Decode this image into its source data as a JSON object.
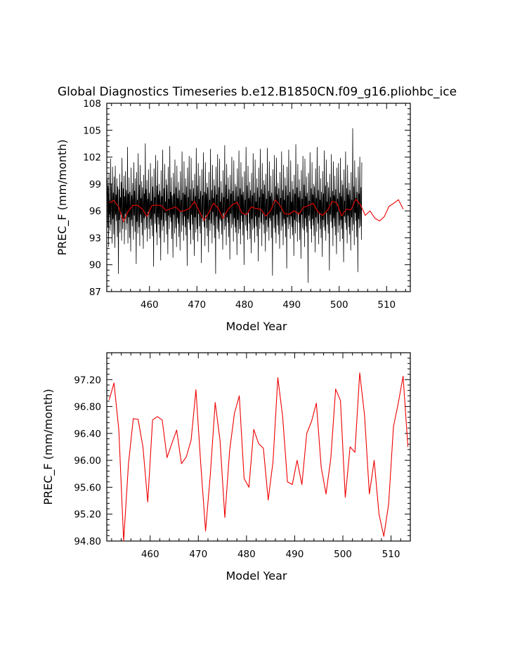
{
  "figure": {
    "title": "Global Diagnostics Timeseries b.e12.B1850CN.f09_g16.pliohbc_ice"
  },
  "colors": {
    "monthly": "#000000",
    "annual": "#ee0000",
    "axes": "#000000"
  },
  "chart_data": [
    {
      "type": "line",
      "ylabel": "PREC_F (mm/month)",
      "xlabel": "Model Year",
      "xlim": [
        451,
        515
      ],
      "ylim": [
        87,
        108
      ],
      "x_tick_labels": [
        "460",
        "470",
        "480",
        "490",
        "500",
        "510"
      ],
      "y_tick_labels": [
        "87",
        "90",
        "93",
        "96",
        "99",
        "102",
        "105",
        "108"
      ],
      "grid": false,
      "series": [
        {
          "color": "#000000",
          "x_start": 451.04,
          "x_step": 0.0833,
          "values": [
            97.8,
            99.5,
            94.2,
            98.8,
            92.0,
            100.2,
            95.6,
            97.1,
            93.8,
            101.8,
            94.5,
            99.0,
            96.6,
            92.4,
            100.9,
            95.1,
            98.0,
            93.4,
            99.8,
            96.2,
            91.9,
            101.0,
            95.6,
            97.8,
            94.9,
            99.6,
            93.1,
            98.7,
            96.0,
            89.0,
            98.4,
            95.0,
            100.1,
            93.6,
            97.5,
            95.8,
            99.2,
            92.7,
            101.9,
            96.3,
            94.0,
            98.5,
            95.1,
            99.9,
            92.3,
            97.6,
            95.7,
            100.4,
            93.9,
            98.3,
            96.2,
            94.6,
            103.1,
            92.4,
            97.9,
            95.3,
            99.7,
            93.0,
            98.1,
            96.4,
            91.5,
            100.8,
            95.0,
            97.7,
            94.3,
            99.1,
            96.8,
            92.8,
            101.4,
            95.5,
            98.2,
            93.7,
            99.6,
            96.0,
            90.1,
            100.3,
            94.8,
            97.2,
            93.5,
            102.4,
            96.1,
            94.2,
            98.9,
            92.1,
            101.1,
            95.6,
            97.4,
            94.7,
            99.3,
            93.3,
            98.6,
            96.7,
            91.8,
            100.0,
            95.2,
            97.9,
            93.9,
            103.5,
            95.4,
            98.4,
            94.1,
            99.4,
            92.6,
            97.3,
            95.9,
            100.6,
            94.0,
            98.0,
            96.5,
            92.9,
            101.3,
            95.1,
            97.1,
            94.4,
            99.8,
            93.2,
            98.7,
            96.3,
            89.8,
            100.7,
            95.7,
            97.5,
            94.6,
            102.2,
            96.0,
            93.6,
            98.8,
            92.2,
            101.6,
            95.3,
            97.8,
            94.5,
            99.0,
            93.0,
            98.2,
            96.6,
            90.5,
            100.5,
            95.0,
            97.6,
            93.8,
            102.8,
            96.2,
            94.3,
            98.5,
            92.5,
            101.2,
            95.8,
            97.0,
            94.9,
            99.5,
            93.4,
            98.9,
            96.1,
            91.2,
            100.9,
            95.5,
            97.3,
            94.0,
            103.2,
            95.3,
            98.1,
            94.8,
            99.7,
            92.9,
            97.7,
            96.4,
            90.8,
            100.2,
            95.6,
            97.9,
            93.5,
            101.7,
            96.0,
            94.1,
            98.6,
            92.0,
            101.0,
            95.2,
            97.4,
            94.6,
            99.2,
            93.1,
            98.3,
            96.5,
            91.6,
            100.4,
            95.9,
            97.2,
            93.7,
            102.6,
            96.3,
            94.4,
            98.0,
            92.7,
            101.5,
            95.4,
            97.8,
            94.2,
            99.6,
            93.3,
            98.7,
            96.2,
            89.9,
            100.8,
            95.1,
            97.5,
            94.7,
            102.1,
            95.8,
            93.9,
            98.4,
            92.3,
            101.9,
            95.6,
            97.1,
            94.5,
            99.4,
            92.8,
            98.5,
            96.7,
            91.0,
            100.1,
            95.3,
            97.6,
            93.6,
            103.0,
            96.1,
            94.0,
            98.8,
            92.6,
            101.3,
            95.7,
            97.3,
            94.3,
            99.9,
            93.5,
            98.2,
            96.0,
            90.2,
            100.6,
            95.2,
            97.7,
            94.8,
            102.5,
            96.4,
            94.2,
            98.1,
            92.1,
            101.4,
            95.5,
            97.9,
            94.1,
            99.1,
            93.2,
            98.6,
            96.3,
            91.4,
            100.3,
            95.0,
            97.2,
            93.8,
            102.9,
            96.2,
            94.6,
            98.3,
            92.4,
            101.1,
            95.9,
            97.4,
            94.4,
            99.5,
            93.0,
            98.8,
            96.6,
            89.0,
            100.9,
            95.4,
            97.8,
            94.0,
            102.3,
            95.6,
            93.7,
            98.6,
            92.9,
            101.8,
            95.1,
            97.0,
            94.9,
            99.3,
            93.4,
            98.0,
            96.1,
            91.7,
            100.5,
            95.8,
            97.5,
            93.9,
            103.3,
            96.0,
            94.3,
            98.9,
            92.2,
            101.2,
            95.3,
            97.3,
            94.7,
            99.7,
            93.1,
            98.4,
            96.5,
            90.6,
            100.0,
            95.7,
            97.9,
            94.1,
            102.0,
            96.3,
            94.5,
            98.2,
            92.6,
            101.6,
            95.2,
            97.1,
            94.2,
            99.0,
            93.6,
            98.7,
            96.2,
            91.1,
            100.7,
            95.0,
            97.6,
            93.5,
            102.7,
            95.9,
            94.0,
            98.5,
            92.3,
            101.4,
            95.5,
            97.8,
            94.8,
            99.8,
            93.3,
            98.1,
            96.4,
            90.0,
            100.4,
            95.6,
            97.2,
            94.4,
            103.1,
            96.1,
            93.8,
            98.8,
            92.8,
            101.0,
            95.8,
            97.4,
            94.6,
            99.2,
            92.9,
            98.3,
            96.7,
            91.3,
            100.2,
            95.1,
            97.7,
            93.9,
            102.4,
            96.2,
            94.1,
            98.0,
            92.5,
            101.7,
            95.4,
            97.0,
            94.3,
            99.6,
            93.2,
            98.6,
            96.0,
            90.4,
            100.8,
            95.3,
            97.5,
            94.0,
            102.9,
            96.5,
            94.7,
            98.4,
            92.1,
            101.3,
            95.7,
            97.9,
            94.5,
            99.4,
            93.5,
            98.9,
            96.3,
            91.5,
            100.1,
            95.0,
            97.3,
            93.7,
            103.0,
            95.8,
            94.2,
            98.2,
            92.7,
            101.5,
            95.2,
            97.6,
            94.9,
            99.9,
            93.0,
            98.0,
            96.6,
            88.8,
            100.6,
            95.5,
            97.1,
            94.1,
            102.2,
            96.0,
            93.6,
            98.7,
            92.4,
            101.9,
            95.6,
            97.8,
            94.4,
            99.1,
            93.4,
            98.5,
            96.2,
            91.8,
            100.3,
            95.9,
            97.4,
            93.8,
            102.6,
            96.4,
            94.3,
            98.3,
            92.2,
            101.1,
            95.1,
            97.2,
            94.6,
            99.7,
            93.1,
            98.8,
            96.1,
            89.6,
            100.9,
            95.3,
            97.7,
            94.0,
            102.8,
            95.7,
            94.5,
            98.1,
            92.9,
            101.6,
            95.4,
            97.0,
            94.2,
            99.3,
            93.3,
            98.4,
            96.5,
            91.0,
            100.0,
            95.0,
            97.9,
            93.5,
            103.4,
            96.3,
            94.8,
            98.6,
            92.6,
            101.2,
            95.8,
            97.5,
            94.7,
            99.5,
            92.8,
            98.2,
            96.0,
            90.7,
            100.5,
            95.6,
            97.3,
            94.1,
            102.1,
            96.2,
            93.9,
            98.9,
            92.0,
            101.8,
            95.2,
            97.6,
            94.3,
            99.8,
            93.6,
            98.0,
            96.4,
            88.0,
            100.2,
            95.5,
            97.1,
            94.9,
            102.5,
            95.9,
            94.0,
            98.5,
            92.5,
            101.4,
            95.1,
            97.8,
            94.4,
            99.0,
            93.2,
            98.7,
            96.6,
            91.4,
            100.7,
            95.3,
            97.4,
            93.7,
            103.1,
            96.1,
            94.6,
            98.3,
            92.3,
            101.0,
            95.7,
            97.2,
            94.0,
            99.6,
            93.0,
            98.1,
            96.3,
            90.9,
            100.4,
            95.0,
            97.9,
            94.2,
            102.7,
            95.4,
            93.8,
            98.8,
            92.7,
            101.7,
            95.8,
            97.0,
            94.5,
            99.2,
            93.5,
            98.6,
            96.5,
            89.4,
            100.1,
            95.6,
            97.5,
            94.8,
            102.3,
            96.0,
            94.1,
            98.2,
            92.1,
            101.5,
            95.2,
            97.7,
            94.3,
            99.9,
            93.3,
            98.4,
            96.2,
            91.2,
            100.8,
            95.9,
            97.3,
            93.6,
            101.3,
            96.4,
            94.4,
            98.0,
            92.6,
            101.9,
            95.0,
            97.6,
            94.0,
            99.4,
            92.9,
            98.9,
            96.0,
            90.3,
            100.6,
            95.4,
            97.1,
            94.7,
            102.6,
            95.7,
            93.9,
            98.5,
            92.4,
            101.1,
            95.5,
            97.8,
            94.2,
            99.1,
            93.4,
            98.3,
            96.6,
            91.6,
            100.3,
            95.3,
            97.2,
            93.8,
            105.2,
            96.1,
            94.5,
            98.7,
            92.2,
            101.6,
            95.8,
            97.4,
            94.9,
            99.7,
            93.1,
            98.1,
            96.3,
            89.2,
            100.9,
            95.1,
            97.9,
            94.1,
            102.0,
            96.2,
            94.3,
            98.6,
            92.8,
            101.4
          ]
        },
        {
          "color": "#ee0000",
          "x": [
            451.5,
            452.5,
            453.5,
            454.5,
            455.5,
            456.5,
            457.5,
            458.5,
            459.5,
            460.5,
            461.5,
            462.5,
            463.5,
            464.5,
            465.5,
            466.5,
            467.5,
            468.5,
            469.5,
            470.5,
            471.5,
            472.5,
            473.5,
            474.5,
            475.5,
            476.5,
            477.5,
            478.5,
            479.5,
            480.5,
            481.5,
            482.5,
            483.5,
            484.5,
            485.5,
            486.5,
            487.5,
            488.5,
            489.5,
            490.5,
            491.5,
            492.5,
            493.5,
            494.5,
            495.5,
            496.5,
            497.5,
            498.5,
            499.5,
            500.5,
            501.5,
            502.5,
            503.5,
            504.5,
            505.5,
            506.5,
            507.5,
            508.5,
            509.5,
            510.5,
            511.5,
            512.5,
            513.5
          ],
          "values": [
            96.9,
            97.15,
            96.45,
            94.8,
            95.95,
            96.62,
            96.61,
            96.2,
            95.38,
            96.6,
            96.65,
            96.6,
            96.04,
            96.25,
            96.45,
            95.95,
            96.05,
            96.3,
            97.05,
            95.95,
            94.95,
            95.8,
            96.86,
            96.3,
            95.15,
            96.15,
            96.7,
            96.96,
            95.73,
            95.6,
            96.46,
            96.25,
            96.18,
            95.41,
            95.98,
            97.23,
            96.65,
            95.68,
            95.64,
            96.0,
            95.64,
            96.4,
            96.58,
            96.85,
            95.9,
            95.5,
            96.03,
            97.06,
            96.89,
            95.45,
            96.2,
            96.12,
            97.3,
            96.67,
            95.5,
            96.0,
            95.2,
            94.87,
            95.35,
            96.5,
            96.85,
            97.25,
            96.2
          ]
        }
      ]
    },
    {
      "type": "line",
      "ylabel": "PREC_F (mm/month)",
      "xlabel": "Model Year",
      "xlim": [
        451,
        514
      ],
      "ylim": [
        94.8,
        97.6
      ],
      "x_tick_labels": [
        "460",
        "470",
        "480",
        "490",
        "500",
        "510"
      ],
      "y_tick_labels": [
        "94.80",
        "95.20",
        "95.60",
        "96.00",
        "96.40",
        "96.80",
        "97.20"
      ],
      "grid": false,
      "series": [
        {
          "color": "#ee0000",
          "x": [
            451.5,
            452.5,
            453.5,
            454.5,
            455.5,
            456.5,
            457.5,
            458.5,
            459.5,
            460.5,
            461.5,
            462.5,
            463.5,
            464.5,
            465.5,
            466.5,
            467.5,
            468.5,
            469.5,
            470.5,
            471.5,
            472.5,
            473.5,
            474.5,
            475.5,
            476.5,
            477.5,
            478.5,
            479.5,
            480.5,
            481.5,
            482.5,
            483.5,
            484.5,
            485.5,
            486.5,
            487.5,
            488.5,
            489.5,
            490.5,
            491.5,
            492.5,
            493.5,
            494.5,
            495.5,
            496.5,
            497.5,
            498.5,
            499.5,
            500.5,
            501.5,
            502.5,
            503.5,
            504.5,
            505.5,
            506.5,
            507.5,
            508.5,
            509.5,
            510.5,
            511.5,
            512.5,
            513.5
          ],
          "values": [
            96.9,
            97.15,
            96.45,
            94.8,
            95.95,
            96.62,
            96.61,
            96.2,
            95.38,
            96.6,
            96.65,
            96.6,
            96.04,
            96.25,
            96.45,
            95.95,
            96.05,
            96.3,
            97.05,
            95.95,
            94.95,
            95.8,
            96.86,
            96.3,
            95.15,
            96.15,
            96.7,
            96.96,
            95.73,
            95.6,
            96.46,
            96.25,
            96.18,
            95.41,
            95.98,
            97.23,
            96.65,
            95.68,
            95.64,
            96.0,
            95.64,
            96.4,
            96.58,
            96.85,
            95.9,
            95.5,
            96.03,
            97.06,
            96.89,
            95.45,
            96.2,
            96.12,
            97.3,
            96.67,
            95.5,
            96.0,
            95.2,
            94.87,
            95.35,
            96.5,
            96.85,
            97.25,
            96.2
          ]
        }
      ]
    }
  ]
}
